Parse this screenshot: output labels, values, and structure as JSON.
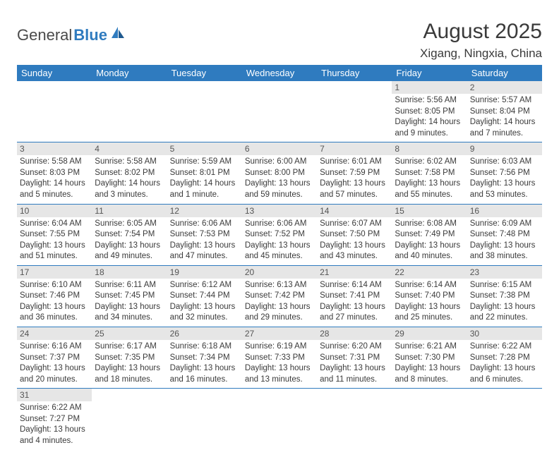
{
  "logo": {
    "part1": "General",
    "part2": "Blue"
  },
  "header": {
    "title": "August 2025",
    "location": "Xigang, Ningxia, China"
  },
  "colors": {
    "header_bg": "#2f7bbf",
    "header_fg": "#ffffff",
    "daynum_bg": "#e6e6e6",
    "row_border": "#2f7bbf",
    "text": "#3a3a3a"
  },
  "weekdays": [
    "Sunday",
    "Monday",
    "Tuesday",
    "Wednesday",
    "Thursday",
    "Friday",
    "Saturday"
  ],
  "weeks": [
    [
      null,
      null,
      null,
      null,
      null,
      {
        "n": "1",
        "sr": "Sunrise: 5:56 AM",
        "ss": "Sunset: 8:05 PM",
        "d1": "Daylight: 14 hours",
        "d2": "and 9 minutes."
      },
      {
        "n": "2",
        "sr": "Sunrise: 5:57 AM",
        "ss": "Sunset: 8:04 PM",
        "d1": "Daylight: 14 hours",
        "d2": "and 7 minutes."
      }
    ],
    [
      {
        "n": "3",
        "sr": "Sunrise: 5:58 AM",
        "ss": "Sunset: 8:03 PM",
        "d1": "Daylight: 14 hours",
        "d2": "and 5 minutes."
      },
      {
        "n": "4",
        "sr": "Sunrise: 5:58 AM",
        "ss": "Sunset: 8:02 PM",
        "d1": "Daylight: 14 hours",
        "d2": "and 3 minutes."
      },
      {
        "n": "5",
        "sr": "Sunrise: 5:59 AM",
        "ss": "Sunset: 8:01 PM",
        "d1": "Daylight: 14 hours",
        "d2": "and 1 minute."
      },
      {
        "n": "6",
        "sr": "Sunrise: 6:00 AM",
        "ss": "Sunset: 8:00 PM",
        "d1": "Daylight: 13 hours",
        "d2": "and 59 minutes."
      },
      {
        "n": "7",
        "sr": "Sunrise: 6:01 AM",
        "ss": "Sunset: 7:59 PM",
        "d1": "Daylight: 13 hours",
        "d2": "and 57 minutes."
      },
      {
        "n": "8",
        "sr": "Sunrise: 6:02 AM",
        "ss": "Sunset: 7:58 PM",
        "d1": "Daylight: 13 hours",
        "d2": "and 55 minutes."
      },
      {
        "n": "9",
        "sr": "Sunrise: 6:03 AM",
        "ss": "Sunset: 7:56 PM",
        "d1": "Daylight: 13 hours",
        "d2": "and 53 minutes."
      }
    ],
    [
      {
        "n": "10",
        "sr": "Sunrise: 6:04 AM",
        "ss": "Sunset: 7:55 PM",
        "d1": "Daylight: 13 hours",
        "d2": "and 51 minutes."
      },
      {
        "n": "11",
        "sr": "Sunrise: 6:05 AM",
        "ss": "Sunset: 7:54 PM",
        "d1": "Daylight: 13 hours",
        "d2": "and 49 minutes."
      },
      {
        "n": "12",
        "sr": "Sunrise: 6:06 AM",
        "ss": "Sunset: 7:53 PM",
        "d1": "Daylight: 13 hours",
        "d2": "and 47 minutes."
      },
      {
        "n": "13",
        "sr": "Sunrise: 6:06 AM",
        "ss": "Sunset: 7:52 PM",
        "d1": "Daylight: 13 hours",
        "d2": "and 45 minutes."
      },
      {
        "n": "14",
        "sr": "Sunrise: 6:07 AM",
        "ss": "Sunset: 7:50 PM",
        "d1": "Daylight: 13 hours",
        "d2": "and 43 minutes."
      },
      {
        "n": "15",
        "sr": "Sunrise: 6:08 AM",
        "ss": "Sunset: 7:49 PM",
        "d1": "Daylight: 13 hours",
        "d2": "and 40 minutes."
      },
      {
        "n": "16",
        "sr": "Sunrise: 6:09 AM",
        "ss": "Sunset: 7:48 PM",
        "d1": "Daylight: 13 hours",
        "d2": "and 38 minutes."
      }
    ],
    [
      {
        "n": "17",
        "sr": "Sunrise: 6:10 AM",
        "ss": "Sunset: 7:46 PM",
        "d1": "Daylight: 13 hours",
        "d2": "and 36 minutes."
      },
      {
        "n": "18",
        "sr": "Sunrise: 6:11 AM",
        "ss": "Sunset: 7:45 PM",
        "d1": "Daylight: 13 hours",
        "d2": "and 34 minutes."
      },
      {
        "n": "19",
        "sr": "Sunrise: 6:12 AM",
        "ss": "Sunset: 7:44 PM",
        "d1": "Daylight: 13 hours",
        "d2": "and 32 minutes."
      },
      {
        "n": "20",
        "sr": "Sunrise: 6:13 AM",
        "ss": "Sunset: 7:42 PM",
        "d1": "Daylight: 13 hours",
        "d2": "and 29 minutes."
      },
      {
        "n": "21",
        "sr": "Sunrise: 6:14 AM",
        "ss": "Sunset: 7:41 PM",
        "d1": "Daylight: 13 hours",
        "d2": "and 27 minutes."
      },
      {
        "n": "22",
        "sr": "Sunrise: 6:14 AM",
        "ss": "Sunset: 7:40 PM",
        "d1": "Daylight: 13 hours",
        "d2": "and 25 minutes."
      },
      {
        "n": "23",
        "sr": "Sunrise: 6:15 AM",
        "ss": "Sunset: 7:38 PM",
        "d1": "Daylight: 13 hours",
        "d2": "and 22 minutes."
      }
    ],
    [
      {
        "n": "24",
        "sr": "Sunrise: 6:16 AM",
        "ss": "Sunset: 7:37 PM",
        "d1": "Daylight: 13 hours",
        "d2": "and 20 minutes."
      },
      {
        "n": "25",
        "sr": "Sunrise: 6:17 AM",
        "ss": "Sunset: 7:35 PM",
        "d1": "Daylight: 13 hours",
        "d2": "and 18 minutes."
      },
      {
        "n": "26",
        "sr": "Sunrise: 6:18 AM",
        "ss": "Sunset: 7:34 PM",
        "d1": "Daylight: 13 hours",
        "d2": "and 16 minutes."
      },
      {
        "n": "27",
        "sr": "Sunrise: 6:19 AM",
        "ss": "Sunset: 7:33 PM",
        "d1": "Daylight: 13 hours",
        "d2": "and 13 minutes."
      },
      {
        "n": "28",
        "sr": "Sunrise: 6:20 AM",
        "ss": "Sunset: 7:31 PM",
        "d1": "Daylight: 13 hours",
        "d2": "and 11 minutes."
      },
      {
        "n": "29",
        "sr": "Sunrise: 6:21 AM",
        "ss": "Sunset: 7:30 PM",
        "d1": "Daylight: 13 hours",
        "d2": "and 8 minutes."
      },
      {
        "n": "30",
        "sr": "Sunrise: 6:22 AM",
        "ss": "Sunset: 7:28 PM",
        "d1": "Daylight: 13 hours",
        "d2": "and 6 minutes."
      }
    ],
    [
      {
        "n": "31",
        "sr": "Sunrise: 6:22 AM",
        "ss": "Sunset: 7:27 PM",
        "d1": "Daylight: 13 hours",
        "d2": "and 4 minutes."
      },
      null,
      null,
      null,
      null,
      null,
      null
    ]
  ]
}
